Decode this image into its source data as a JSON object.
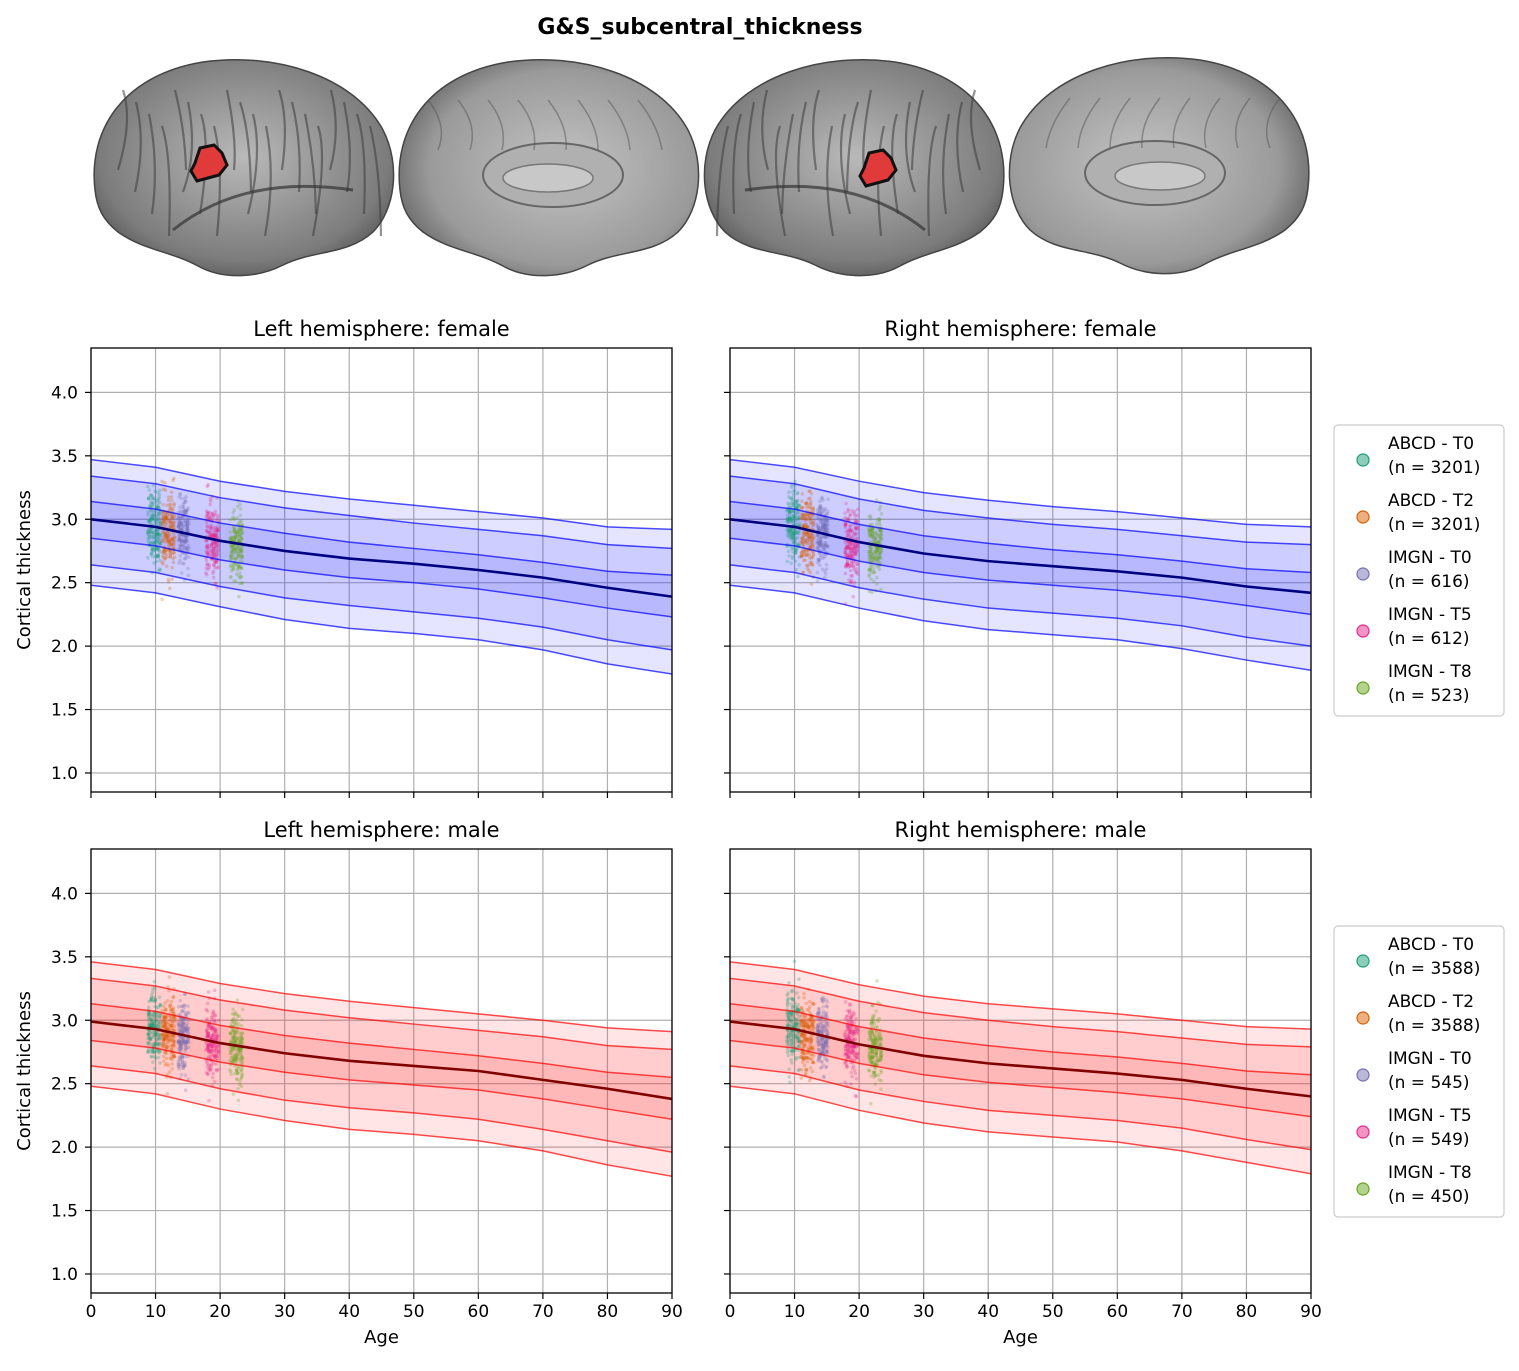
{
  "figure": {
    "title": "G&S_subcentral_thickness"
  },
  "colors": {
    "female_band": "#0000ff",
    "female_center": "#000080",
    "male_band": "#ff0000",
    "male_center": "#800000",
    "highlight": "#e03a3a",
    "cohorts": [
      "#1b9e77",
      "#d95f02",
      "#7570b3",
      "#e7298a",
      "#66a61e"
    ]
  },
  "brain_views": [
    "left-lateral",
    "left-medial",
    "right-lateral",
    "right-medial"
  ],
  "legends": {
    "female": [
      {
        "label": "ABCD - T0",
        "n": "(n = 3201)"
      },
      {
        "label": "ABCD - T2",
        "n": "(n = 3201)"
      },
      {
        "label": "IMGN - T0",
        "n": "(n = 616)"
      },
      {
        "label": "IMGN - T5",
        "n": "(n = 612)"
      },
      {
        "label": "IMGN - T8",
        "n": "(n = 523)"
      }
    ],
    "male": [
      {
        "label": "ABCD - T0",
        "n": "(n = 3588)"
      },
      {
        "label": "ABCD - T2",
        "n": "(n = 3588)"
      },
      {
        "label": "IMGN - T0",
        "n": "(n = 545)"
      },
      {
        "label": "IMGN - T5",
        "n": "(n = 549)"
      },
      {
        "label": "IMGN - T8",
        "n": "(n = 450)"
      }
    ]
  },
  "chart_data": [
    {
      "type": "line",
      "title": "Left hemisphere: female",
      "sex": "female",
      "xlabel": "",
      "ylabel": "Cortical thickness",
      "xlim": [
        0,
        90
      ],
      "ylim": [
        0.85,
        4.35
      ],
      "xticks": [
        0,
        10,
        20,
        30,
        40,
        50,
        60,
        70,
        80,
        90
      ],
      "xtick_labels_shown": false,
      "yticks": [
        "1.0",
        "1.5",
        "2.0",
        "2.5",
        "3.0",
        "3.5",
        "4.0"
      ],
      "ytick_labels_shown": true,
      "grid": true,
      "x": [
        0,
        10,
        20,
        30,
        40,
        50,
        60,
        70,
        80,
        90
      ],
      "series": [
        {
          "values": [
            3.47,
            3.41,
            3.3,
            3.22,
            3.16,
            3.11,
            3.06,
            3.01,
            2.94,
            2.92
          ]
        },
        {
          "values": [
            3.34,
            3.28,
            3.17,
            3.09,
            3.03,
            2.97,
            2.92,
            2.87,
            2.8,
            2.77
          ]
        },
        {
          "values": [
            3.14,
            3.08,
            2.97,
            2.89,
            2.82,
            2.77,
            2.72,
            2.66,
            2.59,
            2.56
          ]
        },
        {
          "values": [
            3.0,
            2.94,
            2.83,
            2.75,
            2.69,
            2.65,
            2.6,
            2.54,
            2.46,
            2.39
          ]
        },
        {
          "values": [
            2.85,
            2.79,
            2.68,
            2.6,
            2.54,
            2.5,
            2.45,
            2.38,
            2.3,
            2.23
          ]
        },
        {
          "values": [
            2.64,
            2.58,
            2.47,
            2.38,
            2.32,
            2.27,
            2.22,
            2.15,
            2.05,
            1.97
          ]
        },
        {
          "values": [
            2.48,
            2.42,
            2.31,
            2.21,
            2.14,
            2.1,
            2.05,
            1.97,
            1.86,
            1.78
          ]
        }
      ],
      "scatter_clusters": [
        {
          "cohort": 0,
          "x_range": [
            8.8,
            10.8
          ],
          "y_mean": 2.94,
          "y_sd": 0.15
        },
        {
          "cohort": 1,
          "x_range": [
            11.0,
            13.0
          ],
          "y_mean": 2.89,
          "y_sd": 0.15
        },
        {
          "cohort": 2,
          "x_range": [
            13.5,
            15.2
          ],
          "y_mean": 2.89,
          "y_sd": 0.13
        },
        {
          "cohort": 3,
          "x_range": [
            17.8,
            19.8
          ],
          "y_mean": 2.83,
          "y_sd": 0.14
        },
        {
          "cohort": 4,
          "x_range": [
            21.5,
            23.5
          ],
          "y_mean": 2.79,
          "y_sd": 0.14
        }
      ]
    },
    {
      "type": "line",
      "title": "Right hemisphere: female",
      "sex": "female",
      "xlabel": "",
      "ylabel": "",
      "xlim": [
        0,
        90
      ],
      "ylim": [
        0.85,
        4.35
      ],
      "xticks": [
        0,
        10,
        20,
        30,
        40,
        50,
        60,
        70,
        80,
        90
      ],
      "xtick_labels_shown": false,
      "yticks": [
        "1.0",
        "1.5",
        "2.0",
        "2.5",
        "3.0",
        "3.5",
        "4.0"
      ],
      "ytick_labels_shown": false,
      "grid": true,
      "x": [
        0,
        10,
        20,
        30,
        40,
        50,
        60,
        70,
        80,
        90
      ],
      "series": [
        {
          "values": [
            3.47,
            3.41,
            3.3,
            3.21,
            3.15,
            3.1,
            3.06,
            3.01,
            2.96,
            2.94
          ]
        },
        {
          "values": [
            3.34,
            3.28,
            3.16,
            3.07,
            3.01,
            2.96,
            2.92,
            2.87,
            2.82,
            2.8
          ]
        },
        {
          "values": [
            3.14,
            3.08,
            2.96,
            2.87,
            2.81,
            2.76,
            2.72,
            2.67,
            2.61,
            2.58
          ]
        },
        {
          "values": [
            3.0,
            2.94,
            2.82,
            2.73,
            2.67,
            2.63,
            2.59,
            2.54,
            2.47,
            2.42
          ]
        },
        {
          "values": [
            2.85,
            2.79,
            2.67,
            2.58,
            2.52,
            2.48,
            2.44,
            2.39,
            2.32,
            2.25
          ]
        },
        {
          "values": [
            2.64,
            2.58,
            2.46,
            2.37,
            2.3,
            2.26,
            2.22,
            2.16,
            2.07,
            2.0
          ]
        },
        {
          "values": [
            2.48,
            2.42,
            2.3,
            2.2,
            2.13,
            2.09,
            2.05,
            1.98,
            1.89,
            1.81
          ]
        }
      ],
      "scatter_clusters": [
        {
          "cohort": 0,
          "x_range": [
            8.8,
            10.8
          ],
          "y_mean": 2.94,
          "y_sd": 0.15
        },
        {
          "cohort": 1,
          "x_range": [
            11.0,
            13.0
          ],
          "y_mean": 2.88,
          "y_sd": 0.15
        },
        {
          "cohort": 2,
          "x_range": [
            13.5,
            15.2
          ],
          "y_mean": 2.88,
          "y_sd": 0.13
        },
        {
          "cohort": 3,
          "x_range": [
            17.8,
            19.8
          ],
          "y_mean": 2.8,
          "y_sd": 0.14
        },
        {
          "cohort": 4,
          "x_range": [
            21.5,
            23.5
          ],
          "y_mean": 2.77,
          "y_sd": 0.14
        }
      ]
    },
    {
      "type": "line",
      "title": "Left hemisphere: male",
      "sex": "male",
      "xlabel": "Age",
      "ylabel": "Cortical thickness",
      "xlim": [
        0,
        90
      ],
      "ylim": [
        0.85,
        4.35
      ],
      "xticks": [
        0,
        10,
        20,
        30,
        40,
        50,
        60,
        70,
        80,
        90
      ],
      "xtick_labels_shown": true,
      "yticks": [
        "1.0",
        "1.5",
        "2.0",
        "2.5",
        "3.0",
        "3.5",
        "4.0"
      ],
      "ytick_labels_shown": true,
      "grid": true,
      "x": [
        0,
        10,
        20,
        30,
        40,
        50,
        60,
        70,
        80,
        90
      ],
      "series": [
        {
          "values": [
            3.46,
            3.4,
            3.29,
            3.21,
            3.15,
            3.1,
            3.05,
            3.0,
            2.94,
            2.91
          ]
        },
        {
          "values": [
            3.33,
            3.27,
            3.16,
            3.08,
            3.02,
            2.97,
            2.92,
            2.87,
            2.8,
            2.77
          ]
        },
        {
          "values": [
            3.13,
            3.07,
            2.96,
            2.88,
            2.82,
            2.77,
            2.72,
            2.66,
            2.59,
            2.55
          ]
        },
        {
          "values": [
            2.99,
            2.93,
            2.82,
            2.74,
            2.68,
            2.64,
            2.6,
            2.53,
            2.46,
            2.38
          ]
        },
        {
          "values": [
            2.84,
            2.78,
            2.67,
            2.59,
            2.53,
            2.49,
            2.45,
            2.38,
            2.3,
            2.22
          ]
        },
        {
          "values": [
            2.64,
            2.58,
            2.46,
            2.37,
            2.31,
            2.27,
            2.22,
            2.14,
            2.05,
            1.96
          ]
        },
        {
          "values": [
            2.48,
            2.42,
            2.3,
            2.21,
            2.14,
            2.1,
            2.05,
            1.97,
            1.86,
            1.77
          ]
        }
      ],
      "scatter_clusters": [
        {
          "cohort": 0,
          "x_range": [
            8.8,
            10.8
          ],
          "y_mean": 2.93,
          "y_sd": 0.15
        },
        {
          "cohort": 1,
          "x_range": [
            11.0,
            13.0
          ],
          "y_mean": 2.87,
          "y_sd": 0.15
        },
        {
          "cohort": 2,
          "x_range": [
            13.5,
            15.2
          ],
          "y_mean": 2.88,
          "y_sd": 0.13
        },
        {
          "cohort": 3,
          "x_range": [
            17.8,
            19.8
          ],
          "y_mean": 2.84,
          "y_sd": 0.14
        },
        {
          "cohort": 4,
          "x_range": [
            21.5,
            23.5
          ],
          "y_mean": 2.79,
          "y_sd": 0.14
        }
      ]
    },
    {
      "type": "line",
      "title": "Right hemisphere: male",
      "sex": "male",
      "xlabel": "Age",
      "ylabel": "",
      "xlim": [
        0,
        90
      ],
      "ylim": [
        0.85,
        4.35
      ],
      "xticks": [
        0,
        10,
        20,
        30,
        40,
        50,
        60,
        70,
        80,
        90
      ],
      "xtick_labels_shown": true,
      "yticks": [
        "1.0",
        "1.5",
        "2.0",
        "2.5",
        "3.0",
        "3.5",
        "4.0"
      ],
      "ytick_labels_shown": false,
      "grid": true,
      "x": [
        0,
        10,
        20,
        30,
        40,
        50,
        60,
        70,
        80,
        90
      ],
      "series": [
        {
          "values": [
            3.46,
            3.4,
            3.28,
            3.19,
            3.13,
            3.09,
            3.05,
            3.0,
            2.95,
            2.93
          ]
        },
        {
          "values": [
            3.33,
            3.27,
            3.15,
            3.06,
            3.0,
            2.95,
            2.91,
            2.86,
            2.81,
            2.79
          ]
        },
        {
          "values": [
            3.13,
            3.07,
            2.95,
            2.86,
            2.8,
            2.75,
            2.71,
            2.66,
            2.6,
            2.57
          ]
        },
        {
          "values": [
            2.99,
            2.93,
            2.81,
            2.72,
            2.66,
            2.62,
            2.58,
            2.53,
            2.46,
            2.4
          ]
        },
        {
          "values": [
            2.84,
            2.78,
            2.66,
            2.57,
            2.51,
            2.47,
            2.43,
            2.38,
            2.31,
            2.24
          ]
        },
        {
          "values": [
            2.64,
            2.58,
            2.45,
            2.36,
            2.29,
            2.25,
            2.21,
            2.15,
            2.06,
            1.98
          ]
        },
        {
          "values": [
            2.48,
            2.42,
            2.29,
            2.19,
            2.12,
            2.08,
            2.04,
            1.97,
            1.88,
            1.79
          ]
        }
      ],
      "scatter_clusters": [
        {
          "cohort": 0,
          "x_range": [
            8.8,
            10.8
          ],
          "y_mean": 2.93,
          "y_sd": 0.15
        },
        {
          "cohort": 1,
          "x_range": [
            11.0,
            13.0
          ],
          "y_mean": 2.87,
          "y_sd": 0.15
        },
        {
          "cohort": 2,
          "x_range": [
            13.5,
            15.2
          ],
          "y_mean": 2.87,
          "y_sd": 0.13
        },
        {
          "cohort": 3,
          "x_range": [
            17.8,
            19.8
          ],
          "y_mean": 2.83,
          "y_sd": 0.14
        },
        {
          "cohort": 4,
          "x_range": [
            21.5,
            23.5
          ],
          "y_mean": 2.78,
          "y_sd": 0.14
        }
      ]
    }
  ]
}
